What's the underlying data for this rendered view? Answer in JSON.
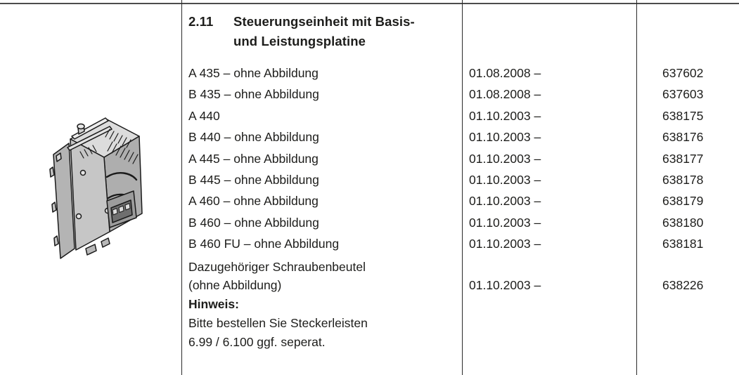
{
  "colors": {
    "text": "#1d1d1b",
    "top_rule": "#4c4c4c",
    "column_rule": "#2b2b2b",
    "drawing_fill_light": "#dcdcdc",
    "drawing_fill_mid": "#c6c6c6",
    "drawing_fill_dark": "#aeaeae",
    "drawing_outline": "#1a1a1a"
  },
  "section": {
    "number": "2.11",
    "title_line1": "Steuerungseinheit mit Basis-",
    "title_line2": "und Leistungsplatine"
  },
  "illustration": {
    "name": "control-unit-technical-drawing"
  },
  "parts_table": {
    "rows": [
      {
        "desc": "A 435 – ohne Abbildung",
        "date": "01.08.2008 –",
        "number": "637602"
      },
      {
        "desc": "B 435 – ohne Abbildung",
        "date": "01.08.2008 –",
        "number": "637603"
      },
      {
        "desc": "A 440",
        "date": "01.10.2003 –",
        "number": "638175"
      },
      {
        "desc": "B 440 – ohne Abbildung",
        "date": "01.10.2003 –",
        "number": "638176"
      },
      {
        "desc": "A 445 – ohne Abbildung",
        "date": "01.10.2003 –",
        "number": "638177"
      },
      {
        "desc": "B 445 – ohne Abbildung",
        "date": "01.10.2003 –",
        "number": "638178"
      },
      {
        "desc": "A 460 – ohne Abbildung",
        "date": "01.10.2003 –",
        "number": "638179"
      },
      {
        "desc": "B 460 – ohne Abbildung",
        "date": "01.10.2003 –",
        "number": "638180"
      },
      {
        "desc": "B 460 FU – ohne Abbildung",
        "date": "01.10.2003 –",
        "number": "638181"
      },
      {
        "desc": "Dazugehöriger Schraubenbeutel",
        "desc2": "(ohne Abbildung)",
        "date": "01.10.2003 –",
        "number": "638226"
      }
    ]
  },
  "note": {
    "label": "Hinweis:",
    "line1": "Bitte bestellen Sie Steckerleisten",
    "line2": "6.99 / 6.100 ggf. seperat."
  }
}
